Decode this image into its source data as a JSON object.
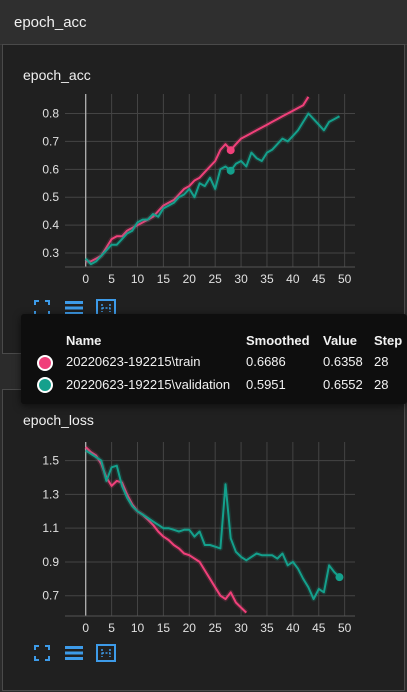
{
  "section": {
    "title": "epoch_acc"
  },
  "card1": {
    "title": "epoch_acc"
  },
  "card2": {
    "title": "epoch_loss",
    "ghost_title": "epoch_loss"
  },
  "toolbar": {
    "icons": [
      "fullscreen-icon",
      "data-table-icon",
      "fit-domain-icon"
    ]
  },
  "colors": {
    "train": "#f0407a",
    "validation": "#14a08c",
    "accent": "#3d9be9"
  },
  "tooltip": {
    "headers": {
      "name": "Name",
      "smoothed": "Smoothed",
      "value": "Value",
      "step": "Step"
    },
    "rows": [
      {
        "name": "20220623-192215\\train",
        "smoothed": "0.6686",
        "value": "0.6358",
        "step": "28",
        "color": "#f0407a"
      },
      {
        "name": "20220623-192215\\validation",
        "smoothed": "0.5951",
        "value": "0.6552",
        "step": "28",
        "color": "#14a08c"
      }
    ]
  },
  "chart_data": [
    {
      "type": "line",
      "title": "epoch_acc",
      "xlabel": "",
      "ylabel": "",
      "xlim": [
        -4,
        52
      ],
      "ylim": [
        0.25,
        0.87
      ],
      "xticks": [
        0,
        5,
        10,
        15,
        20,
        25,
        30,
        35,
        40,
        45,
        50
      ],
      "yticks": [
        0.3,
        0.4,
        0.5,
        0.6,
        0.7,
        0.8
      ],
      "grid": true,
      "hover_step": 28,
      "series": [
        {
          "name": "20220623-192215\\train",
          "color": "#f0407a",
          "x": [
            0,
            1,
            2,
            3,
            4,
            5,
            6,
            7,
            8,
            9,
            10,
            11,
            12,
            13,
            14,
            15,
            16,
            17,
            18,
            19,
            20,
            21,
            22,
            23,
            24,
            25,
            26,
            27,
            28,
            29,
            30,
            31,
            32,
            33,
            34,
            35,
            36,
            37,
            38,
            39,
            40,
            41,
            42,
            43
          ],
          "values": [
            0.27,
            0.27,
            0.28,
            0.29,
            0.32,
            0.35,
            0.36,
            0.36,
            0.38,
            0.39,
            0.4,
            0.41,
            0.42,
            0.43,
            0.45,
            0.47,
            0.48,
            0.49,
            0.51,
            0.53,
            0.54,
            0.56,
            0.57,
            0.59,
            0.61,
            0.63,
            0.67,
            0.69,
            0.6686,
            0.69,
            0.71,
            0.72,
            0.73,
            0.74,
            0.75,
            0.76,
            0.77,
            0.78,
            0.79,
            0.8,
            0.81,
            0.82,
            0.83,
            0.86
          ]
        },
        {
          "name": "20220623-192215\\validation",
          "color": "#14a08c",
          "x": [
            0,
            1,
            2,
            3,
            4,
            5,
            6,
            7,
            8,
            9,
            10,
            11,
            12,
            13,
            14,
            15,
            16,
            17,
            18,
            19,
            20,
            21,
            22,
            23,
            24,
            25,
            26,
            27,
            28,
            29,
            30,
            31,
            32,
            33,
            34,
            35,
            36,
            37,
            38,
            39,
            40,
            41,
            42,
            43,
            44,
            45,
            46,
            47,
            48,
            49
          ],
          "values": [
            0.28,
            0.26,
            0.27,
            0.29,
            0.31,
            0.33,
            0.33,
            0.35,
            0.37,
            0.38,
            0.41,
            0.42,
            0.42,
            0.44,
            0.43,
            0.46,
            0.47,
            0.48,
            0.5,
            0.51,
            0.53,
            0.5,
            0.55,
            0.54,
            0.57,
            0.53,
            0.6,
            0.61,
            0.5951,
            0.62,
            0.63,
            0.61,
            0.66,
            0.64,
            0.63,
            0.66,
            0.67,
            0.69,
            0.71,
            0.7,
            0.72,
            0.74,
            0.77,
            0.8,
            0.78,
            0.76,
            0.74,
            0.77,
            0.78,
            0.79
          ]
        }
      ]
    },
    {
      "type": "line",
      "title": "epoch_loss",
      "xlabel": "",
      "ylabel": "",
      "xlim": [
        -4,
        52
      ],
      "ylim": [
        0.58,
        1.61
      ],
      "xticks": [
        0,
        5,
        10,
        15,
        20,
        25,
        30,
        35,
        40,
        45,
        50
      ],
      "yticks": [
        0.7,
        0.9,
        1.1,
        1.3,
        1.5
      ],
      "grid": true,
      "series": [
        {
          "name": "20220623-192215\\train",
          "color": "#f0407a",
          "x": [
            0,
            1,
            2,
            3,
            4,
            5,
            6,
            7,
            8,
            9,
            10,
            11,
            12,
            13,
            14,
            15,
            16,
            17,
            18,
            19,
            20,
            21,
            22,
            23,
            24,
            25,
            26,
            27,
            28,
            29,
            30,
            31
          ],
          "values": [
            1.58,
            1.55,
            1.53,
            1.48,
            1.4,
            1.35,
            1.38,
            1.37,
            1.3,
            1.24,
            1.2,
            1.18,
            1.15,
            1.12,
            1.08,
            1.05,
            1.03,
            1.0,
            0.98,
            0.95,
            0.94,
            0.92,
            0.9,
            0.85,
            0.8,
            0.75,
            0.7,
            0.68,
            0.72,
            0.66,
            0.63,
            0.6
          ]
        },
        {
          "name": "20220623-192215\\validation",
          "color": "#14a08c",
          "x": [
            0,
            1,
            2,
            3,
            4,
            5,
            6,
            7,
            8,
            9,
            10,
            11,
            12,
            13,
            14,
            15,
            16,
            17,
            18,
            19,
            20,
            21,
            22,
            23,
            24,
            25,
            26,
            27,
            28,
            29,
            30,
            31,
            32,
            33,
            34,
            35,
            36,
            37,
            38,
            39,
            40,
            41,
            42,
            43,
            44,
            45,
            46,
            47,
            48,
            49
          ],
          "values": [
            1.56,
            1.54,
            1.52,
            1.5,
            1.38,
            1.46,
            1.47,
            1.35,
            1.28,
            1.23,
            1.2,
            1.18,
            1.16,
            1.14,
            1.12,
            1.1,
            1.1,
            1.09,
            1.08,
            1.09,
            1.09,
            1.05,
            1.08,
            1.0,
            1.0,
            0.99,
            0.98,
            1.36,
            1.04,
            0.96,
            0.93,
            0.91,
            0.93,
            0.95,
            0.94,
            0.94,
            0.94,
            0.92,
            0.95,
            0.88,
            0.9,
            0.86,
            0.8,
            0.75,
            0.68,
            0.74,
            0.72,
            0.88,
            0.84,
            0.81
          ]
        }
      ]
    }
  ]
}
